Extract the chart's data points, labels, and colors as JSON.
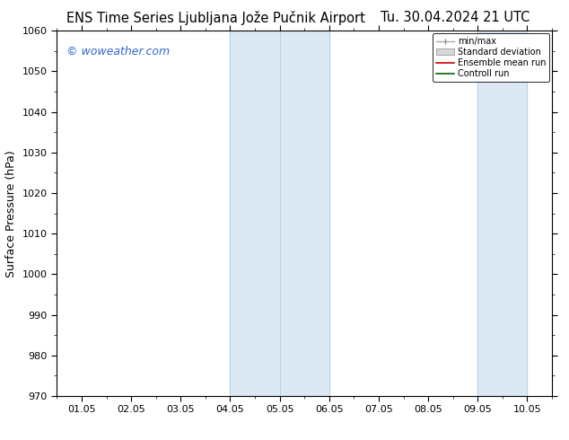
{
  "title_left": "ENS Time Series Ljubljana Jože Pučnik Airport",
  "title_right": "Tu. 30.04.2024 21 UTC",
  "ylabel": "Surface Pressure (hPa)",
  "ylim": [
    970,
    1060
  ],
  "yticks": [
    970,
    980,
    990,
    1000,
    1010,
    1020,
    1030,
    1040,
    1050,
    1060
  ],
  "xlim_dates": [
    "01.05",
    "02.05",
    "03.05",
    "04.05",
    "05.05",
    "06.05",
    "07.05",
    "08.05",
    "09.05",
    "10.05"
  ],
  "x_num_start": 0,
  "x_num_end": 9,
  "xtick_positions": [
    0,
    1,
    2,
    3,
    4,
    5,
    6,
    7,
    8,
    9
  ],
  "shaded_regions": [
    {
      "x_start": 3,
      "x_end": 4,
      "color": "#dce9f5"
    },
    {
      "x_start": 4,
      "x_end": 5,
      "color": "#dce9f5"
    },
    {
      "x_start": 8,
      "x_end": 9,
      "color": "#dce9f5"
    }
  ],
  "vlines_light": [
    3,
    4,
    5,
    8,
    9
  ],
  "watermark_text": "© woweather.com",
  "watermark_color": "#3366cc",
  "legend_labels": [
    "min/max",
    "Standard deviation",
    "Ensemble mean run",
    "Controll run"
  ],
  "background_color": "#ffffff",
  "plot_bg_color": "#ffffff",
  "title_fontsize": 10.5,
  "axis_fontsize": 9,
  "tick_fontsize": 8,
  "watermark_fontsize": 9
}
